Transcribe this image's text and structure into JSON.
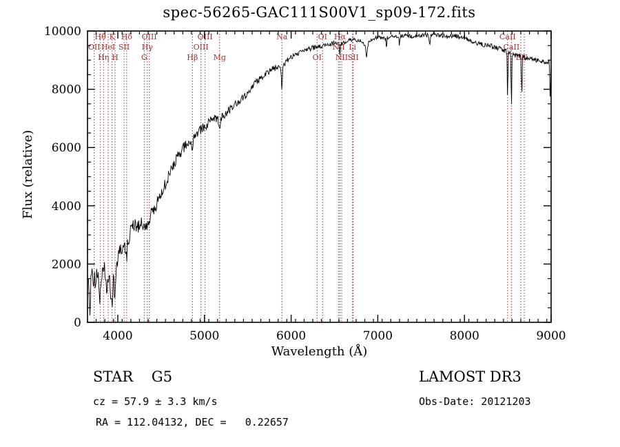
{
  "title": "spec-56265-GAC111S00V1_sp09-172.fits",
  "axes": {
    "xlabel": "Wavelength (Å)",
    "ylabel": "Flux (relative)",
    "x_range": [
      3650,
      9000
    ],
    "y_range": [
      0,
      10000
    ],
    "x_major_ticks": [
      4000,
      5000,
      6000,
      7000,
      8000,
      9000
    ],
    "y_major_ticks": [
      0,
      2000,
      4000,
      6000,
      8000,
      10000
    ],
    "x_minor_step": 100,
    "y_minor_step": 500
  },
  "chart_data": {
    "type": "line",
    "series_name": "spectrum-flux",
    "title": "spec-56265-GAC111S00V1_sp09-172.fits",
    "xlabel": "Wavelength (Å)",
    "ylabel": "Flux (relative)",
    "xlim": [
      3650,
      9000
    ],
    "ylim": [
      0,
      10000
    ],
    "colors": {
      "spectrum": "#000000",
      "markers": "#993333",
      "frame": "#000000"
    },
    "control_points": [
      [
        3660,
        1500
      ],
      [
        3675,
        800
      ],
      [
        3690,
        1700
      ],
      [
        3705,
        1850
      ],
      [
        3720,
        1300
      ],
      [
        3735,
        1750
      ],
      [
        3750,
        1500
      ],
      [
        3765,
        1900
      ],
      [
        3780,
        1350
      ],
      [
        3795,
        1100
      ],
      [
        3810,
        1500
      ],
      [
        3825,
        1800
      ],
      [
        3840,
        1950
      ],
      [
        3855,
        1600
      ],
      [
        3870,
        1250
      ],
      [
        3885,
        1550
      ],
      [
        3900,
        1700
      ],
      [
        3915,
        1300
      ],
      [
        3930,
        1000
      ],
      [
        3945,
        1500
      ],
      [
        3960,
        1200
      ],
      [
        3975,
        1600
      ],
      [
        3990,
        1900
      ],
      [
        4005,
        2250
      ],
      [
        4020,
        2400
      ],
      [
        4040,
        2550
      ],
      [
        4060,
        2500
      ],
      [
        4080,
        2600
      ],
      [
        4100,
        2650
      ],
      [
        4120,
        2850
      ],
      [
        4140,
        3050
      ],
      [
        4160,
        3200
      ],
      [
        4185,
        3300
      ],
      [
        4210,
        3350
      ],
      [
        4240,
        3300
      ],
      [
        4270,
        3380
      ],
      [
        4300,
        3300
      ],
      [
        4330,
        3420
      ],
      [
        4360,
        3550
      ],
      [
        4400,
        3800
      ],
      [
        4440,
        4000
      ],
      [
        4480,
        4250
      ],
      [
        4520,
        4550
      ],
      [
        4560,
        4850
      ],
      [
        4600,
        5100
      ],
      [
        4650,
        5450
      ],
      [
        4700,
        5750
      ],
      [
        4750,
        5950
      ],
      [
        4800,
        6150
      ],
      [
        4850,
        6150
      ],
      [
        4900,
        6400
      ],
      [
        4950,
        6600
      ],
      [
        5000,
        6700
      ],
      [
        5060,
        6900
      ],
      [
        5120,
        7000
      ],
      [
        5180,
        6980
      ],
      [
        5240,
        7150
      ],
      [
        5300,
        7350
      ],
      [
        5360,
        7500
      ],
      [
        5420,
        7650
      ],
      [
        5480,
        7800
      ],
      [
        5540,
        8050
      ],
      [
        5600,
        8250
      ],
      [
        5660,
        8400
      ],
      [
        5720,
        8550
      ],
      [
        5780,
        8700
      ],
      [
        5840,
        8750
      ],
      [
        5900,
        8800
      ],
      [
        5960,
        9000
      ],
      [
        6020,
        9150
      ],
      [
        6080,
        9250
      ],
      [
        6150,
        9350
      ],
      [
        6220,
        9400
      ],
      [
        6290,
        9450
      ],
      [
        6360,
        9500
      ],
      [
        6430,
        9550
      ],
      [
        6500,
        9600
      ],
      [
        6570,
        9550
      ],
      [
        6640,
        9650
      ],
      [
        6720,
        9700
      ],
      [
        6800,
        9650
      ],
      [
        6870,
        9500
      ],
      [
        6940,
        9750
      ],
      [
        7010,
        9800
      ],
      [
        7080,
        9750
      ],
      [
        7160,
        9850
      ],
      [
        7240,
        9800
      ],
      [
        7320,
        9850
      ],
      [
        7400,
        9800
      ],
      [
        7480,
        9850
      ],
      [
        7560,
        9850
      ],
      [
        7640,
        9900
      ],
      [
        7720,
        9850
      ],
      [
        7800,
        9800
      ],
      [
        7880,
        9850
      ],
      [
        7960,
        9800
      ],
      [
        8040,
        9700
      ],
      [
        8120,
        9600
      ],
      [
        8200,
        9550
      ],
      [
        8280,
        9500
      ],
      [
        8360,
        9450
      ],
      [
        8440,
        9350
      ],
      [
        8520,
        9250
      ],
      [
        8600,
        9150
      ],
      [
        8680,
        9100
      ],
      [
        8760,
        9050
      ],
      [
        8840,
        9000
      ],
      [
        8920,
        8950
      ],
      [
        9000,
        8900
      ]
    ],
    "absorption_dips": [
      [
        3680,
        700,
        6
      ],
      [
        3740,
        500,
        5
      ],
      [
        3790,
        600,
        5
      ],
      [
        3870,
        500,
        5
      ],
      [
        3915,
        400,
        4
      ],
      [
        3934,
        550,
        7
      ],
      [
        3968,
        450,
        7
      ],
      [
        4102,
        450,
        7
      ],
      [
        4340,
        350,
        7
      ],
      [
        4861,
        450,
        7
      ],
      [
        5175,
        250,
        12
      ],
      [
        5893,
        750,
        7
      ],
      [
        6563,
        450,
        6
      ],
      [
        6870,
        450,
        10
      ],
      [
        7100,
        400,
        5
      ],
      [
        7250,
        300,
        5
      ],
      [
        7600,
        300,
        9
      ],
      [
        8498,
        1700,
        5
      ],
      [
        8542,
        2100,
        5
      ],
      [
        8662,
        1500,
        5
      ],
      [
        8990,
        1300,
        6
      ]
    ],
    "noise": {
      "seed": 20121203,
      "amp_points": [
        [
          3660,
          300
        ],
        [
          4000,
          260
        ],
        [
          4500,
          210
        ],
        [
          5000,
          160
        ],
        [
          5500,
          120
        ],
        [
          6000,
          95
        ],
        [
          6800,
          70
        ],
        [
          8000,
          80
        ],
        [
          9000,
          95
        ]
      ]
    },
    "line_markers": [
      {
        "label": "Hθ",
        "wavelength": 3798,
        "row": 1
      },
      {
        "label": "K",
        "wavelength": 3934,
        "row": 1
      },
      {
        "label": "Hδ",
        "wavelength": 4102,
        "row": 1
      },
      {
        "label": "OIII",
        "wavelength": 4363,
        "row": 1
      },
      {
        "label": "OIII",
        "wavelength": 5007,
        "row": 1
      },
      {
        "label": "Na",
        "wavelength": 5893,
        "row": 1
      },
      {
        "label": "OI",
        "wavelength": 6363,
        "row": 1
      },
      {
        "label": "Hα",
        "wavelength": 6563,
        "row": 1
      },
      {
        "label": "CaII",
        "wavelength": 8498,
        "row": 1
      },
      {
        "label": "OII",
        "wavelength": 3727,
        "row": 2
      },
      {
        "label": "HeI",
        "wavelength": 3889,
        "row": 2
      },
      {
        "label": "SII",
        "wavelength": 4072,
        "row": 2
      },
      {
        "label": "Hγ",
        "wavelength": 4340,
        "row": 2
      },
      {
        "label": "OIII",
        "wavelength": 4959,
        "row": 2
      },
      {
        "label": "NII",
        "wavelength": 6548,
        "row": 2
      },
      {
        "label": "Li",
        "wavelength": 6708,
        "row": 2
      },
      {
        "label": "CaII",
        "wavelength": 8542,
        "row": 2
      },
      {
        "label": "Hη",
        "wavelength": 3835,
        "row": 3
      },
      {
        "label": "H",
        "wavelength": 3968,
        "row": 3
      },
      {
        "label": "G",
        "wavelength": 4305,
        "row": 3
      },
      {
        "label": "Hβ",
        "wavelength": 4861,
        "row": 3
      },
      {
        "label": "Mg",
        "wavelength": 5175,
        "row": 3
      },
      {
        "label": "OI",
        "wavelength": 6300,
        "row": 3
      },
      {
        "label": "NII",
        "wavelength": 6583,
        "row": 3
      },
      {
        "label": "SII",
        "wavelength": 6716,
        "row": 3
      },
      {
        "label": "Ba",
        "wavelength": 8650,
        "row": 3
      },
      {
        "label": "N",
        "wavelength": 8690,
        "row": 3
      }
    ]
  },
  "footer": {
    "class_label": "STAR    G5",
    "cz_line": "cz = 57.9 ± 3.3 km/s",
    "radec_line": "RA = 112.04132, DEC =   0.22657",
    "survey": "LAMOST DR3",
    "obsdate": "Obs-Date: 20121203"
  }
}
